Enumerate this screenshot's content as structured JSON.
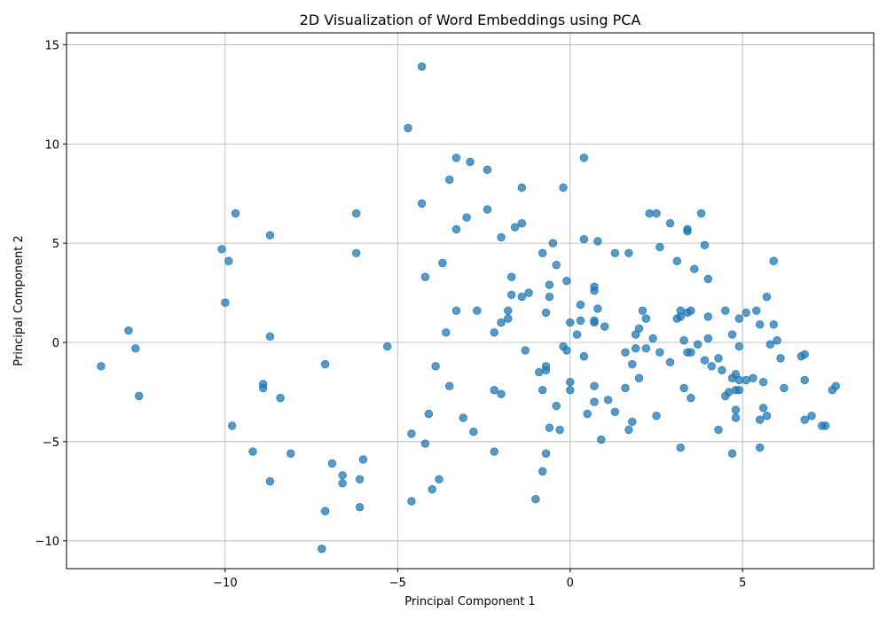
{
  "chart_data": {
    "type": "scatter",
    "title": "2D Visualization of Word Embeddings using PCA",
    "xlabel": "Principal Component 1",
    "ylabel": "Principal Component 2",
    "xlim": [
      -14.6,
      8.8
    ],
    "ylim": [
      -11.4,
      15.6
    ],
    "xticks": [
      -10,
      -5,
      0,
      5
    ],
    "yticks": [
      -10,
      -5,
      0,
      5,
      10,
      15
    ],
    "xtick_labels": [
      "−10",
      "−5",
      "0",
      "5"
    ],
    "ytick_labels": [
      "−10",
      "−5",
      "0",
      "5",
      "10",
      "15"
    ],
    "grid": true,
    "color": "#1f77b4",
    "points": [
      [
        -13.6,
        -1.2
      ],
      [
        -12.8,
        0.6
      ],
      [
        -12.6,
        -0.3
      ],
      [
        -12.5,
        -2.7
      ],
      [
        -10.1,
        4.7
      ],
      [
        -10.0,
        2.0
      ],
      [
        -9.9,
        4.1
      ],
      [
        -9.8,
        -4.2
      ],
      [
        -9.7,
        6.5
      ],
      [
        -9.2,
        -5.5
      ],
      [
        -8.9,
        -2.1
      ],
      [
        -8.9,
        -2.3
      ],
      [
        -8.7,
        5.4
      ],
      [
        -8.7,
        0.3
      ],
      [
        -8.7,
        -7.0
      ],
      [
        -8.4,
        -2.8
      ],
      [
        -8.1,
        -5.6
      ],
      [
        -7.2,
        -10.4
      ],
      [
        -7.1,
        -1.1
      ],
      [
        -7.1,
        -8.5
      ],
      [
        -6.9,
        -6.1
      ],
      [
        -6.6,
        -6.7
      ],
      [
        -6.6,
        -7.1
      ],
      [
        -6.2,
        6.5
      ],
      [
        -6.2,
        4.5
      ],
      [
        -6.1,
        -6.9
      ],
      [
        -6.1,
        -8.3
      ],
      [
        -6.0,
        -5.9
      ],
      [
        -5.3,
        -0.2
      ],
      [
        -4.7,
        10.8
      ],
      [
        -4.6,
        -4.6
      ],
      [
        -4.6,
        -8.0
      ],
      [
        -4.3,
        13.9
      ],
      [
        -4.3,
        7.0
      ],
      [
        -4.2,
        3.3
      ],
      [
        -4.2,
        -5.1
      ],
      [
        -4.1,
        -3.6
      ],
      [
        -4.0,
        -7.4
      ],
      [
        -3.9,
        -1.2
      ],
      [
        -3.8,
        -6.9
      ],
      [
        -3.7,
        4.0
      ],
      [
        -3.6,
        0.5
      ],
      [
        -3.5,
        8.2
      ],
      [
        -3.5,
        -2.2
      ],
      [
        -3.3,
        9.3
      ],
      [
        -3.3,
        5.7
      ],
      [
        -3.3,
        1.6
      ],
      [
        -3.1,
        -3.8
      ],
      [
        -3.0,
        6.3
      ],
      [
        -2.9,
        9.1
      ],
      [
        -2.8,
        -4.5
      ],
      [
        -2.7,
        1.6
      ],
      [
        -2.4,
        8.7
      ],
      [
        -2.4,
        6.7
      ],
      [
        -2.2,
        0.5
      ],
      [
        -2.2,
        -2.4
      ],
      [
        -2.2,
        -5.5
      ],
      [
        -2.0,
        5.3
      ],
      [
        -2.0,
        1.0
      ],
      [
        -2.0,
        -2.6
      ],
      [
        -1.8,
        1.6
      ],
      [
        -1.8,
        1.2
      ],
      [
        -1.7,
        3.3
      ],
      [
        -1.7,
        2.4
      ],
      [
        -1.6,
        5.8
      ],
      [
        -1.4,
        7.8
      ],
      [
        -1.4,
        6.0
      ],
      [
        -1.4,
        2.3
      ],
      [
        -1.3,
        -0.4
      ],
      [
        -1.2,
        2.5
      ],
      [
        -1.0,
        -7.9
      ],
      [
        -0.9,
        -1.5
      ],
      [
        -0.8,
        4.5
      ],
      [
        -0.8,
        -2.4
      ],
      [
        -0.8,
        -6.5
      ],
      [
        -0.7,
        -1.2
      ],
      [
        -0.7,
        1.5
      ],
      [
        -0.7,
        -1.4
      ],
      [
        -0.7,
        -5.6
      ],
      [
        -0.6,
        2.3
      ],
      [
        -0.6,
        2.9
      ],
      [
        -0.6,
        -4.3
      ],
      [
        -0.5,
        5.0
      ],
      [
        -0.4,
        3.9
      ],
      [
        -0.4,
        -3.2
      ],
      [
        -0.3,
        -4.4
      ],
      [
        -0.2,
        7.8
      ],
      [
        -0.2,
        -0.2
      ],
      [
        -0.1,
        3.1
      ],
      [
        -0.1,
        -0.4
      ],
      [
        0.0,
        1.0
      ],
      [
        0.0,
        -2.0
      ],
      [
        0.0,
        -2.4
      ],
      [
        0.2,
        0.4
      ],
      [
        0.3,
        1.9
      ],
      [
        0.3,
        1.1
      ],
      [
        0.4,
        9.3
      ],
      [
        0.4,
        5.2
      ],
      [
        0.4,
        -0.7
      ],
      [
        0.5,
        -3.6
      ],
      [
        0.7,
        2.8
      ],
      [
        0.7,
        2.6
      ],
      [
        0.7,
        1.1
      ],
      [
        0.7,
        1.0
      ],
      [
        0.7,
        -2.2
      ],
      [
        0.7,
        -3.0
      ],
      [
        0.8,
        5.1
      ],
      [
        0.8,
        1.7
      ],
      [
        0.9,
        -4.9
      ],
      [
        1.0,
        0.8
      ],
      [
        1.1,
        -2.9
      ],
      [
        1.3,
        4.5
      ],
      [
        1.3,
        -3.5
      ],
      [
        1.6,
        -0.5
      ],
      [
        1.6,
        -2.3
      ],
      [
        1.7,
        4.5
      ],
      [
        1.7,
        -4.4
      ],
      [
        1.8,
        -1.1
      ],
      [
        1.8,
        -4.0
      ],
      [
        1.9,
        0.4
      ],
      [
        1.9,
        -0.3
      ],
      [
        2.0,
        0.7
      ],
      [
        2.0,
        -1.8
      ],
      [
        2.1,
        1.6
      ],
      [
        2.2,
        -0.3
      ],
      [
        2.2,
        1.2
      ],
      [
        2.3,
        6.5
      ],
      [
        2.4,
        0.2
      ],
      [
        2.5,
        6.5
      ],
      [
        2.5,
        -3.7
      ],
      [
        2.6,
        4.8
      ],
      [
        2.6,
        -0.5
      ],
      [
        2.9,
        6.0
      ],
      [
        2.9,
        -1.0
      ],
      [
        3.1,
        4.1
      ],
      [
        3.1,
        1.2
      ],
      [
        3.2,
        1.6
      ],
      [
        3.2,
        1.3
      ],
      [
        3.2,
        -5.3
      ],
      [
        3.3,
        0.1
      ],
      [
        3.3,
        -2.3
      ],
      [
        3.4,
        5.7
      ],
      [
        3.4,
        5.6
      ],
      [
        3.4,
        1.5
      ],
      [
        3.4,
        -0.5
      ],
      [
        3.5,
        1.6
      ],
      [
        3.5,
        -2.8
      ],
      [
        3.5,
        -0.5
      ],
      [
        3.6,
        3.7
      ],
      [
        3.7,
        -0.1
      ],
      [
        3.8,
        6.5
      ],
      [
        3.9,
        -0.9
      ],
      [
        3.9,
        4.9
      ],
      [
        4.0,
        3.2
      ],
      [
        4.0,
        1.3
      ],
      [
        4.0,
        0.2
      ],
      [
        4.1,
        -1.2
      ],
      [
        4.3,
        -0.8
      ],
      [
        4.3,
        -4.4
      ],
      [
        4.4,
        -1.4
      ],
      [
        4.5,
        1.6
      ],
      [
        4.5,
        -2.7
      ],
      [
        4.6,
        -2.5
      ],
      [
        4.7,
        -5.6
      ],
      [
        4.7,
        0.4
      ],
      [
        4.7,
        -1.8
      ],
      [
        4.8,
        -2.4
      ],
      [
        4.8,
        -3.8
      ],
      [
        4.8,
        -3.4
      ],
      [
        4.8,
        -1.6
      ],
      [
        4.9,
        -1.9
      ],
      [
        4.9,
        -2.4
      ],
      [
        4.9,
        1.2
      ],
      [
        4.9,
        -0.2
      ],
      [
        5.1,
        1.5
      ],
      [
        5.1,
        -1.9
      ],
      [
        5.3,
        -1.8
      ],
      [
        5.4,
        1.6
      ],
      [
        5.5,
        0.9
      ],
      [
        5.5,
        -3.9
      ],
      [
        5.5,
        -5.3
      ],
      [
        5.6,
        -2.0
      ],
      [
        5.6,
        -3.3
      ],
      [
        5.7,
        -3.7
      ],
      [
        5.7,
        2.3
      ],
      [
        5.8,
        -0.1
      ],
      [
        5.9,
        4.1
      ],
      [
        5.9,
        0.9
      ],
      [
        6.0,
        0.1
      ],
      [
        6.1,
        -0.8
      ],
      [
        6.2,
        -2.3
      ],
      [
        6.7,
        -0.7
      ],
      [
        6.8,
        -0.6
      ],
      [
        6.8,
        -1.9
      ],
      [
        6.8,
        -3.9
      ],
      [
        7.0,
        -3.7
      ],
      [
        7.3,
        -4.2
      ],
      [
        7.4,
        -4.2
      ],
      [
        7.6,
        -2.4
      ],
      [
        7.7,
        -2.2
      ]
    ]
  }
}
